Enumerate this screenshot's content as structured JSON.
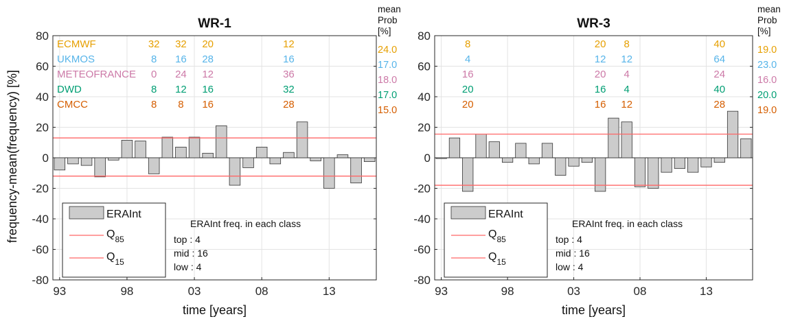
{
  "colors": {
    "ECMWF": "#e69f00",
    "UKMOS": "#56b4e9",
    "METEOFRANCE": "#cc79a7",
    "DWD": "#009e73",
    "CMCC": "#d55e00",
    "bar_fill": "#cccccc",
    "quantile_line": "#ff6666"
  },
  "shared": {
    "ylabel": "frequency-mean(frequency) [%]",
    "xlabel": "time [years]",
    "mean_prob_header": [
      "mean",
      "Prob",
      "[%]"
    ],
    "legend": {
      "bars": "ERAInt",
      "q85_main": "Q",
      "q85_sub": "85",
      "q15_main": "Q",
      "q15_sub": "15"
    },
    "freq_title": "ERAInt freq. in each class",
    "freq_lines": [
      "top : 4",
      "mid : 16",
      "low : 4"
    ],
    "models": [
      "ECMWF",
      "UKMOS",
      "METEOFRANCE",
      "DWD",
      "CMCC"
    ]
  },
  "chart_data": [
    {
      "type": "bar",
      "title": "WR-1",
      "xlabel": "time [years]",
      "ylabel": "frequency-mean(frequency) [%]",
      "xtick_labels": [
        "93",
        "98",
        "03",
        "08",
        "13"
      ],
      "xtick_years": [
        1993,
        1998,
        2003,
        2008,
        2013
      ],
      "ylim": [
        -80,
        80
      ],
      "yticks": [
        -80,
        -60,
        -40,
        -20,
        0,
        20,
        40,
        60,
        80
      ],
      "grid": true,
      "legend_position": "bottom-left",
      "years": [
        1993,
        1994,
        1995,
        1996,
        1997,
        1998,
        1999,
        2000,
        2001,
        2002,
        2003,
        2004,
        2005,
        2006,
        2007,
        2008,
        2009,
        2010,
        2011,
        2012,
        2013,
        2014,
        2015,
        2016
      ],
      "series": [
        {
          "name": "ERAInt",
          "values": [
            -8,
            -4,
            -5,
            -12.5,
            -1.5,
            11.5,
            11,
            -10.5,
            13.5,
            7,
            13.5,
            3,
            21,
            -18,
            -6.5,
            7,
            -4,
            3.5,
            23.5,
            -2,
            -20,
            2,
            -16.5,
            -2.5
          ]
        }
      ],
      "q85": 13,
      "q15": -12,
      "annotations": [
        {
          "model": "ECMWF",
          "cells": [
            {
              "year": 2000,
              "text": "32"
            },
            {
              "year": 2002,
              "text": "32"
            },
            {
              "year": 2004,
              "text": "20"
            },
            {
              "year": 2010,
              "text": "12"
            }
          ],
          "mean": "24.0"
        },
        {
          "model": "UKMOS",
          "cells": [
            {
              "year": 2000,
              "text": "8"
            },
            {
              "year": 2002,
              "text": "16"
            },
            {
              "year": 2004,
              "text": "28"
            },
            {
              "year": 2010,
              "text": "16"
            }
          ],
          "mean": "17.0"
        },
        {
          "model": "METEOFRANCE",
          "cells": [
            {
              "year": 2000,
              "text": "0"
            },
            {
              "year": 2002,
              "text": "24"
            },
            {
              "year": 2004,
              "text": "12"
            },
            {
              "year": 2010,
              "text": "36"
            }
          ],
          "mean": "18.0"
        },
        {
          "model": "DWD",
          "cells": [
            {
              "year": 2000,
              "text": "8"
            },
            {
              "year": 2002,
              "text": "12"
            },
            {
              "year": 2004,
              "text": "16"
            },
            {
              "year": 2010,
              "text": "32"
            }
          ],
          "mean": "17.0"
        },
        {
          "model": "CMCC",
          "cells": [
            {
              "year": 2000,
              "text": "8"
            },
            {
              "year": 2002,
              "text": "8"
            },
            {
              "year": 2004,
              "text": "16"
            },
            {
              "year": 2010,
              "text": "28"
            }
          ],
          "mean": "15.0"
        }
      ]
    },
    {
      "type": "bar",
      "title": "WR-3",
      "xlabel": "time [years]",
      "ylabel": "",
      "xtick_labels": [
        "93",
        "98",
        "03",
        "08",
        "13"
      ],
      "xtick_years": [
        1993,
        1998,
        2003,
        2008,
        2013
      ],
      "ylim": [
        -80,
        80
      ],
      "yticks": [
        -80,
        -60,
        -40,
        -20,
        0,
        20,
        40,
        60,
        80
      ],
      "grid": true,
      "legend_position": "bottom-left",
      "years": [
        1993,
        1994,
        1995,
        1996,
        1997,
        1998,
        1999,
        2000,
        2001,
        2002,
        2003,
        2004,
        2005,
        2006,
        2007,
        2008,
        2009,
        2010,
        2011,
        2012,
        2013,
        2014,
        2015,
        2016
      ],
      "series": [
        {
          "name": "ERAInt",
          "values": [
            -0.5,
            13,
            -22,
            15.5,
            10.5,
            -3,
            9.5,
            -4,
            9.5,
            -11.5,
            -5.5,
            -3,
            -22,
            26,
            23.5,
            -19,
            -20,
            -9.5,
            -7,
            -9.5,
            -6,
            -3,
            30.5,
            12.5
          ]
        }
      ],
      "q85": 15.5,
      "q15": -18,
      "annotations": [
        {
          "model": "ECMWF",
          "cells": [
            {
              "year": 1995,
              "text": "8"
            },
            {
              "year": 2005,
              "text": "20"
            },
            {
              "year": 2007,
              "text": "8"
            },
            {
              "year": 2014,
              "text": "40"
            }
          ],
          "mean": "19.0"
        },
        {
          "model": "UKMOS",
          "cells": [
            {
              "year": 1995,
              "text": "4"
            },
            {
              "year": 2005,
              "text": "12"
            },
            {
              "year": 2007,
              "text": "12"
            },
            {
              "year": 2014,
              "text": "64"
            }
          ],
          "mean": "23.0"
        },
        {
          "model": "METEOFRANCE",
          "cells": [
            {
              "year": 1995,
              "text": "16"
            },
            {
              "year": 2005,
              "text": "20"
            },
            {
              "year": 2007,
              "text": "4"
            },
            {
              "year": 2014,
              "text": "24"
            }
          ],
          "mean": "16.0"
        },
        {
          "model": "DWD",
          "cells": [
            {
              "year": 1995,
              "text": "20"
            },
            {
              "year": 2005,
              "text": "16"
            },
            {
              "year": 2007,
              "text": "4"
            },
            {
              "year": 2014,
              "text": "40"
            }
          ],
          "mean": "20.0"
        },
        {
          "model": "CMCC",
          "cells": [
            {
              "year": 1995,
              "text": "20"
            },
            {
              "year": 2005,
              "text": "16"
            },
            {
              "year": 2007,
              "text": "12"
            },
            {
              "year": 2014,
              "text": "28"
            }
          ],
          "mean": "19.0"
        }
      ]
    }
  ]
}
